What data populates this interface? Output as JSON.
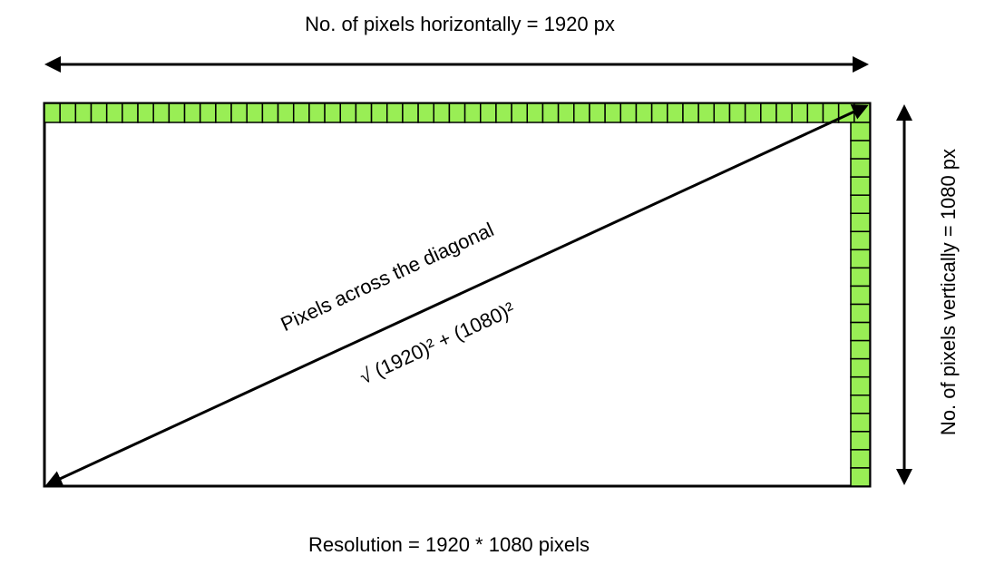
{
  "labels": {
    "horizontal": "No. of pixels horizontally = 1920 px",
    "vertical": "No. of pixels vertically = 1080 px",
    "diagonal": "Pixels across the diagonal",
    "formula": "√ (1920)² + (1080)²",
    "resolution": "Resolution = 1920 * 1080 pixels"
  },
  "colors": {
    "pixel_fill": "#99ee55",
    "line": "#000000"
  },
  "pixel_counts": {
    "top_row": 53,
    "right_column": 20
  }
}
